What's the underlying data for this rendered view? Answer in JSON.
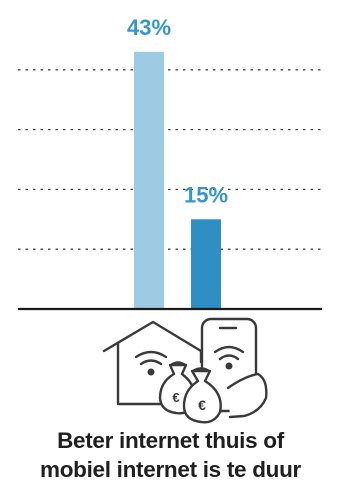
{
  "chart_data": {
    "type": "bar",
    "categories": [
      "Beter internet thuis",
      "mobiel internet"
    ],
    "values": [
      43,
      15
    ],
    "value_labels": [
      "43%",
      "15%"
    ],
    "ylim": [
      0,
      50
    ],
    "grid": true,
    "colors": [
      "#9ecbe4",
      "#2f8fc4"
    ],
    "label_color": "#3596cc"
  },
  "caption": {
    "line1": "Beter internet thuis of",
    "line2": "mobiel internet is te duur"
  },
  "icons": [
    "house-wifi-icon",
    "money-bag-euro-icon",
    "smartphone-wifi-icon"
  ]
}
